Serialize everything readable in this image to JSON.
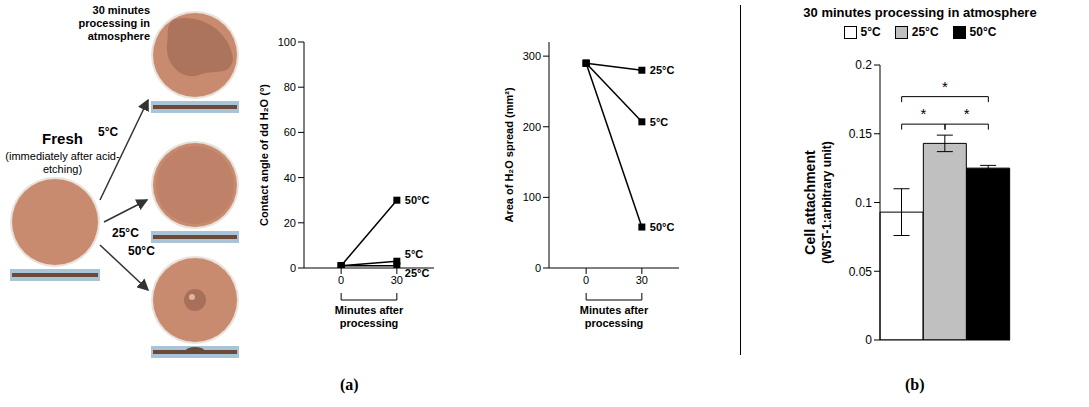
{
  "photos": {
    "title": "30 minutes processing in atmosphere",
    "fresh": "Fresh",
    "fresh_note": "(immediately after acid-etching)",
    "conditions": [
      "5°C",
      "25°C",
      "50°C"
    ]
  },
  "panel_labels": [
    "(a)",
    "(b)"
  ],
  "chart_data": [
    {
      "type": "line",
      "ylabel": "Contact angle of dd H₂O (°)",
      "xlabel": "Minutes after processing",
      "x": [
        0,
        30
      ],
      "xlim": [
        -20,
        50
      ],
      "xticks": [
        0,
        30
      ],
      "ylim": [
        0,
        100
      ],
      "yticks": [
        0,
        20,
        40,
        60,
        80,
        100
      ],
      "grid": false,
      "series": [
        {
          "name": "50°C",
          "color": "#000000",
          "marker": "square",
          "values": [
            1,
            30
          ]
        },
        {
          "name": "5°C",
          "color": "#000000",
          "marker": "square",
          "values": [
            1,
            3
          ]
        },
        {
          "name": "25°C",
          "color": "#000000",
          "marker": "square",
          "values": [
            1,
            1
          ]
        }
      ]
    },
    {
      "type": "line",
      "ylabel": "Area of H₂O spread (mm²)",
      "xlabel": "Minutes after processing",
      "x": [
        0,
        30
      ],
      "xlim": [
        -20,
        50
      ],
      "xticks": [
        0,
        30
      ],
      "ylim": [
        0,
        320
      ],
      "yticks": [
        0,
        100,
        200,
        300
      ],
      "grid": false,
      "series": [
        {
          "name": "25°C",
          "color": "#000000",
          "marker": "square",
          "values": [
            290,
            280
          ]
        },
        {
          "name": "5°C",
          "color": "#000000",
          "marker": "square",
          "values": [
            290,
            207
          ]
        },
        {
          "name": "50°C",
          "color": "#000000",
          "marker": "square",
          "values": [
            290,
            58
          ]
        }
      ]
    },
    {
      "type": "bar",
      "title": "30 minutes processing in atmosphere",
      "ylabel": "Cell attachment (WST-1:arbitrary unit)",
      "categories": [
        "5°C",
        "25°C",
        "50°C"
      ],
      "values": [
        0.093,
        0.143,
        0.125
      ],
      "errors": [
        0.017,
        0.006,
        0.002
      ],
      "colors": [
        "#ffffff",
        "#c0c0c0",
        "#000000"
      ],
      "ylim": [
        0,
        0.2
      ],
      "yticks": [
        0,
        0.05,
        0.1,
        0.15,
        0.2
      ],
      "legend": "top",
      "tick_labels": "y",
      "grid": false,
      "significance": [
        {
          "pair": [
            "5°C",
            "50°C"
          ],
          "label": "*"
        },
        {
          "pair": [
            "5°C",
            "25°C"
          ],
          "label": "*"
        },
        {
          "pair": [
            "25°C",
            "50°C"
          ],
          "label": "*"
        }
      ]
    }
  ]
}
